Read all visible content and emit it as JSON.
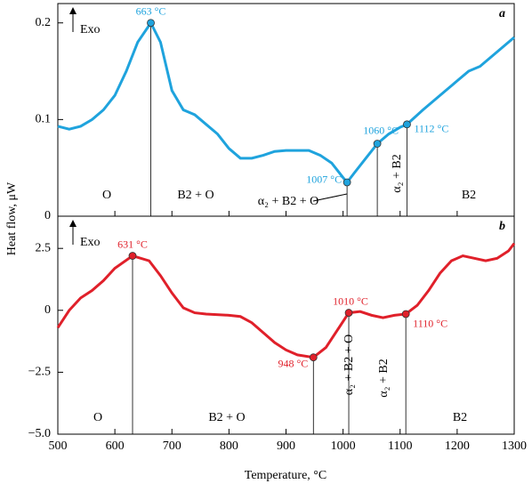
{
  "chart_data": [
    {
      "type": "line",
      "panel_letter": "a",
      "y_label": "Heat flow, μW",
      "annotation": "Exo",
      "ylim": [
        0,
        0.22
      ],
      "yticks": [
        0,
        0.1,
        0.2
      ],
      "series": [
        {
          "name": "a",
          "color": "#1fa3dd",
          "x": [
            500,
            520,
            540,
            560,
            580,
            600,
            620,
            640,
            663,
            680,
            700,
            720,
            740,
            760,
            780,
            800,
            820,
            840,
            860,
            880,
            900,
            920,
            940,
            960,
            980,
            1000,
            1007,
            1020,
            1040,
            1060,
            1080,
            1100,
            1112,
            1140,
            1160,
            1180,
            1200,
            1220,
            1240,
            1260,
            1280,
            1300
          ],
          "values": [
            0.093,
            0.09,
            0.093,
            0.1,
            0.11,
            0.125,
            0.15,
            0.18,
            0.2,
            0.18,
            0.13,
            0.11,
            0.105,
            0.095,
            0.085,
            0.07,
            0.06,
            0.06,
            0.063,
            0.067,
            0.068,
            0.068,
            0.068,
            0.063,
            0.055,
            0.04,
            0.035,
            0.045,
            0.06,
            0.075,
            0.085,
            0.092,
            0.095,
            0.11,
            0.12,
            0.13,
            0.14,
            0.15,
            0.155,
            0.165,
            0.175,
            0.185
          ]
        }
      ],
      "points": {
        "x": [
          663,
          1007,
          1060,
          1112
        ],
        "values": [
          0.2,
          0.035,
          0.075,
          0.095
        ],
        "labels": [
          "663 °C",
          "1007 °C",
          "1060 °C",
          "1112 °C"
        ]
      },
      "phases": [
        "O",
        "B2 + O",
        "α₂ + B2 + O",
        "α₂ + B2",
        "B2"
      ]
    },
    {
      "type": "line",
      "panel_letter": "b",
      "x_label": "Temperature, °C",
      "annotation": "Exo",
      "xlim": [
        500,
        1300
      ],
      "xticks": [
        500,
        600,
        700,
        800,
        900,
        1000,
        1100,
        1200,
        1300
      ],
      "ylim": [
        -5,
        3.8
      ],
      "yticks": [
        2.5,
        0,
        {
          "value": -2.5,
          "label": "−2.5"
        },
        {
          "value": -5,
          "label": "−5.0"
        }
      ],
      "series": [
        {
          "name": "b",
          "color": "#e0202a",
          "x": [
            500,
            520,
            540,
            560,
            580,
            600,
            631,
            660,
            680,
            700,
            720,
            740,
            760,
            800,
            820,
            840,
            860,
            880,
            900,
            920,
            948,
            970,
            990,
            1010,
            1030,
            1050,
            1070,
            1090,
            1110,
            1130,
            1150,
            1170,
            1190,
            1210,
            1230,
            1250,
            1270,
            1290,
            1300
          ],
          "values": [
            -0.7,
            0,
            0.5,
            0.8,
            1.2,
            1.7,
            2.2,
            2.0,
            1.4,
            0.7,
            0.1,
            -0.1,
            -0.15,
            -0.2,
            -0.25,
            -0.5,
            -0.9,
            -1.3,
            -1.6,
            -1.8,
            -1.9,
            -1.5,
            -0.8,
            -0.1,
            -0.05,
            -0.2,
            -0.3,
            -0.2,
            -0.15,
            0.2,
            0.8,
            1.5,
            2.0,
            2.2,
            2.1,
            2.0,
            2.1,
            2.4,
            2.7
          ]
        }
      ],
      "points": {
        "x": [
          631,
          948,
          1010,
          1110
        ],
        "values": [
          2.2,
          -1.9,
          -0.1,
          -0.15
        ],
        "labels": [
          "631 °C",
          "948 °C",
          "1010 °C",
          "1110 °C"
        ]
      },
      "phases": [
        "O",
        "B2 + O",
        "α₂ + B2 + O",
        "α₂ + B2",
        "B2"
      ]
    }
  ]
}
